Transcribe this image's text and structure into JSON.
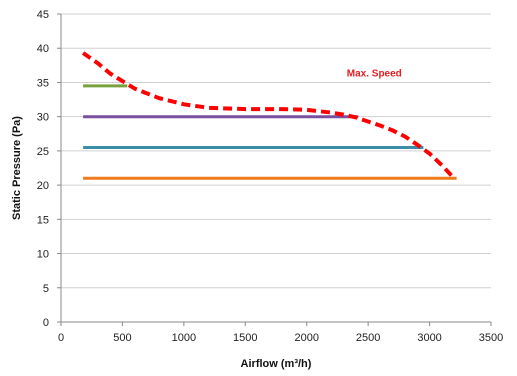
{
  "chart_data": {
    "type": "line",
    "title": "",
    "xlabel": "Airflow (m³/h)",
    "ylabel": "Static Pressure (Pa)",
    "xlim": [
      0,
      3500
    ],
    "ylim": [
      0,
      45
    ],
    "x_ticks": [
      0,
      500,
      1000,
      1500,
      2000,
      2500,
      3000,
      3500
    ],
    "y_ticks": [
      0,
      5,
      10,
      15,
      20,
      25,
      30,
      35,
      40,
      45
    ],
    "grid": {
      "horizontal": true,
      "vertical": false
    },
    "legend": "none",
    "series": [
      {
        "color": "#77a13b",
        "dash": false,
        "x": [
          180,
          540
        ],
        "y": [
          34.5,
          34.5
        ]
      },
      {
        "color": "#7a4fa0",
        "dash": false,
        "x": [
          180,
          2420
        ],
        "y": [
          30,
          30
        ]
      },
      {
        "color": "#3a8ea6",
        "dash": false,
        "x": [
          180,
          2950
        ],
        "y": [
          25.5,
          25.5
        ]
      },
      {
        "color": "#f07a1f",
        "dash": false,
        "x": [
          180,
          3220
        ],
        "y": [
          21,
          21
        ]
      },
      {
        "name": "Max. Speed",
        "color": "#ff0000",
        "dash": true,
        "x": [
          180,
          300,
          400,
          500,
          600,
          800,
          1000,
          1200,
          1500,
          1800,
          2000,
          2200,
          2300,
          2400,
          2500,
          2600,
          2700,
          2800,
          2900,
          3000,
          3100,
          3200
        ],
        "y": [
          39.3,
          37.8,
          36.3,
          35.2,
          34.1,
          32.7,
          31.8,
          31.3,
          31.1,
          31.1,
          31.0,
          30.6,
          30.3,
          29.9,
          29.3,
          28.7,
          28.0,
          27.1,
          25.9,
          24.6,
          22.9,
          21.0
        ]
      }
    ],
    "annotations": [
      {
        "text": "Max. Speed",
        "x": 2550,
        "y": 36.3,
        "color": "#e31d1d"
      }
    ]
  }
}
